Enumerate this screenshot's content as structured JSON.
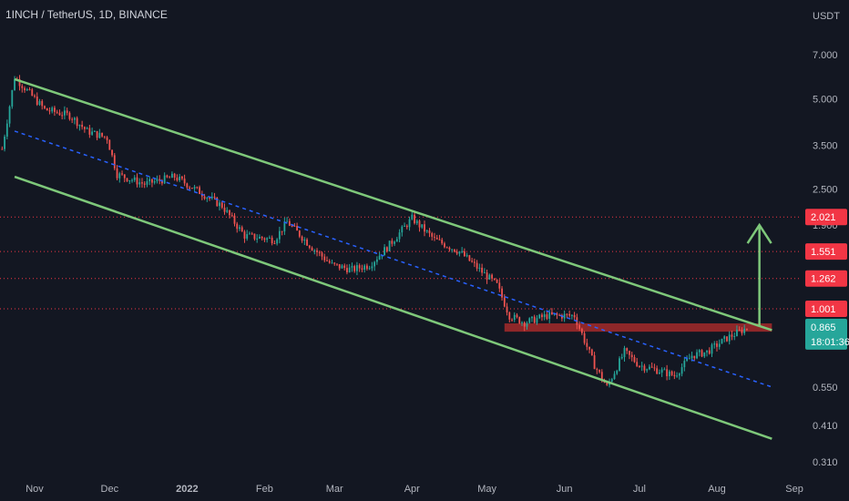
{
  "header": {
    "title": "1INCH / TetherUS, 1D, BINANCE"
  },
  "chart_data": {
    "type": "candlestick",
    "title": "1INCH / TetherUS, 1D, BINANCE",
    "y_axis_label": "USDT",
    "y_scale": "log",
    "y_ticks": [
      "7.000",
      "5.000",
      "3.500",
      "2.500",
      "1.900",
      "0.550",
      "0.410",
      "0.310"
    ],
    "x_ticks": [
      "Nov",
      "Dec",
      "2022",
      "Feb",
      "Mar",
      "Apr",
      "May",
      "Jun",
      "Jul",
      "Aug",
      "Sep"
    ],
    "x_tick_dates": [
      "2021-11-01",
      "2021-12-01",
      "2022-01-01",
      "2022-02-01",
      "2022-03-01",
      "2022-04-01",
      "2022-05-01",
      "2022-06-01",
      "2022-07-01",
      "2022-08-01",
      "2022-09-01"
    ],
    "price_levels": [
      {
        "value": 2.021,
        "label": "2.021"
      },
      {
        "value": 1.551,
        "label": "1.551"
      },
      {
        "value": 1.262,
        "label": "1.262"
      },
      {
        "value": 1.001,
        "label": "1.001"
      }
    ],
    "current_price": {
      "value": 0.865,
      "label": "0.865",
      "countdown": "18:01:36"
    },
    "resistance_zone": {
      "from": "2022-05-08",
      "to": "2022-08-23",
      "low": 0.84,
      "high": 0.895
    },
    "channel_upper": [
      [
        "2021-10-24",
        5.8
      ],
      [
        "2022-08-23",
        0.85
      ]
    ],
    "channel_lower": [
      [
        "2021-10-24",
        2.75
      ],
      [
        "2022-08-23",
        0.37
      ]
    ],
    "channel_mid": [
      [
        "2021-10-24",
        3.9
      ],
      [
        "2022-08-23",
        0.55
      ]
    ],
    "target_arrow": {
      "date": "2022-08-18",
      "from": 0.88,
      "to": 1.9
    },
    "price_path": [
      [
        "2021-10-19",
        3.4
      ],
      [
        "2021-10-24",
        5.9
      ],
      [
        "2021-11-05",
        4.6
      ],
      [
        "2021-11-15",
        4.4
      ],
      [
        "2021-11-22",
        3.9
      ],
      [
        "2021-11-30",
        3.7
      ],
      [
        "2021-12-04",
        2.8
      ],
      [
        "2021-12-15",
        2.6
      ],
      [
        "2021-12-27",
        2.75
      ],
      [
        "2022-01-06",
        2.45
      ],
      [
        "2022-01-15",
        2.2
      ],
      [
        "2022-01-24",
        1.75
      ],
      [
        "2022-02-05",
        1.7
      ],
      [
        "2022-02-10",
        1.95
      ],
      [
        "2022-02-20",
        1.6
      ],
      [
        "2022-02-28",
        1.4
      ],
      [
        "2022-03-08",
        1.35
      ],
      [
        "2022-03-15",
        1.4
      ],
      [
        "2022-03-22",
        1.6
      ],
      [
        "2022-04-01",
        2.0
      ],
      [
        "2022-04-10",
        1.7
      ],
      [
        "2022-04-20",
        1.55
      ],
      [
        "2022-04-28",
        1.35
      ],
      [
        "2022-05-05",
        1.2
      ],
      [
        "2022-05-10",
        0.95
      ],
      [
        "2022-05-16",
        0.9
      ],
      [
        "2022-05-25",
        0.95
      ],
      [
        "2022-06-05",
        0.95
      ],
      [
        "2022-06-13",
        0.65
      ],
      [
        "2022-06-18",
        0.55
      ],
      [
        "2022-06-25",
        0.72
      ],
      [
        "2022-07-01",
        0.65
      ],
      [
        "2022-07-10",
        0.62
      ],
      [
        "2022-07-15",
        0.6
      ],
      [
        "2022-07-22",
        0.7
      ],
      [
        "2022-07-28",
        0.72
      ],
      [
        "2022-08-05",
        0.8
      ],
      [
        "2022-08-13",
        0.865
      ]
    ]
  },
  "colors": {
    "background": "#131722",
    "bullish": "#26a69a",
    "bearish": "#ef5350",
    "channel": "#7ec87a",
    "midline": "#2962ff",
    "level_line": "#f23645",
    "zone": "#a52a2a",
    "current_tag": "#26a69a"
  }
}
